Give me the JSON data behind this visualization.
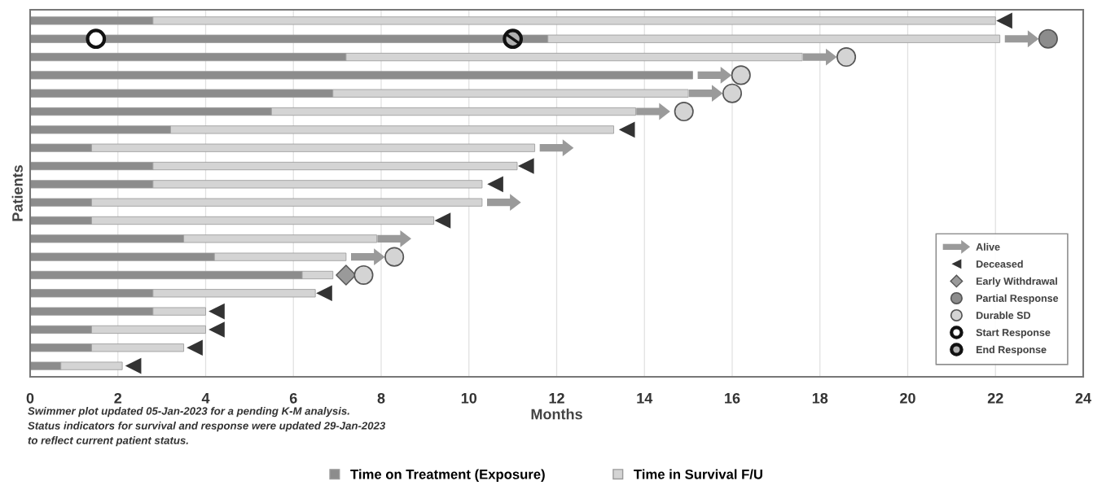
{
  "chart_data": {
    "type": "bar",
    "orientation": "horizontal",
    "stacked": true,
    "xlabel": "Months",
    "ylabel": "Patients",
    "categories": [
      null,
      null,
      null,
      null,
      null,
      null,
      null,
      null,
      null,
      null,
      null,
      null,
      null,
      null,
      null,
      null,
      null,
      null,
      null,
      null
    ],
    "xlim": [
      0,
      24
    ],
    "xticks": [
      0,
      2,
      4,
      6,
      8,
      10,
      12,
      14,
      16,
      18,
      20,
      22,
      24
    ],
    "grid": "x",
    "tick_labels": "x",
    "legend": "bottom right",
    "series": [
      {
        "name": "Time on Treatment (Exposure)",
        "color": "#8c8c8c",
        "values": [
          2.8,
          11.8,
          7.2,
          15.1,
          6.9,
          5.5,
          3.2,
          1.4,
          2.8,
          2.8,
          1.4,
          1.4,
          3.5,
          4.2,
          6.2,
          2.8,
          2.8,
          1.4,
          1.4,
          0.7
        ]
      },
      {
        "name": "Time in Survival F/U",
        "color": "#d4d4d4",
        "values": [
          19.2,
          10.3,
          10.4,
          0,
          8.1,
          8.3,
          10.1,
          10.1,
          8.3,
          7.5,
          8.9,
          7.8,
          4.4,
          3.0,
          0.7,
          3.7,
          1.2,
          2.6,
          2.1,
          1.4
        ]
      },
      {
        "name": "Alive",
        "type": "scatter",
        "marker": "triangle",
        "line_style": "solid",
        "color": "#9a9a9a",
        "values": [
          null,
          22.6,
          18.0,
          15.6,
          15.4,
          14.2,
          null,
          12.0,
          null,
          null,
          10.8,
          null,
          8.3,
          7.7,
          null,
          null,
          null,
          null,
          null,
          null
        ]
      },
      {
        "name": "Deceased",
        "type": "scatter",
        "marker": "triangle",
        "color": "#333333",
        "values": [
          22.2,
          null,
          null,
          null,
          null,
          null,
          13.6,
          null,
          11.3,
          10.6,
          null,
          9.4,
          null,
          null,
          null,
          6.7,
          4.25,
          4.25,
          3.75,
          2.35
        ]
      },
      {
        "name": "Early Withdrawal",
        "type": "scatter",
        "marker": "diamond",
        "color": "#9a9a9a",
        "values": [
          null,
          null,
          null,
          null,
          null,
          null,
          null,
          null,
          null,
          null,
          null,
          null,
          null,
          null,
          7.2,
          null,
          null,
          null,
          null,
          null
        ]
      },
      {
        "name": "Partial Response",
        "type": "scatter",
        "marker": "circle",
        "color": "#8c8c8c",
        "values": [
          null,
          23.2,
          null,
          null,
          null,
          null,
          null,
          null,
          null,
          null,
          null,
          null,
          null,
          null,
          null,
          null,
          null,
          null,
          null,
          null
        ]
      },
      {
        "name": "Durable SD",
        "type": "scatter",
        "marker": "circle",
        "color": "#d4d4d4",
        "values": [
          null,
          null,
          18.6,
          16.2,
          16.0,
          14.9,
          null,
          null,
          null,
          null,
          null,
          null,
          null,
          8.3,
          7.6,
          null,
          null,
          null,
          null,
          null
        ]
      },
      {
        "name": "Start Response",
        "type": "scatter",
        "marker": "circle",
        "color": "#ffffff",
        "values": [
          null,
          1.5,
          null,
          null,
          null,
          null,
          null,
          null,
          null,
          null,
          null,
          null,
          null,
          null,
          null,
          null,
          null,
          null,
          null,
          null
        ]
      },
      {
        "name": "End Response",
        "type": "scatter",
        "marker": "circle",
        "color": "#111111",
        "values": [
          null,
          11.0,
          null,
          null,
          null,
          null,
          null,
          null,
          null,
          null,
          null,
          null,
          null,
          null,
          null,
          null,
          null,
          null,
          null,
          null
        ]
      }
    ],
    "annotations": [
      "Swimmer plot updated 05-Jan-2023 for a pending K-M analysis.\nStatus indicators for survival and response were updated 29-Jan-2023\nto reflect current patient status."
    ]
  }
}
